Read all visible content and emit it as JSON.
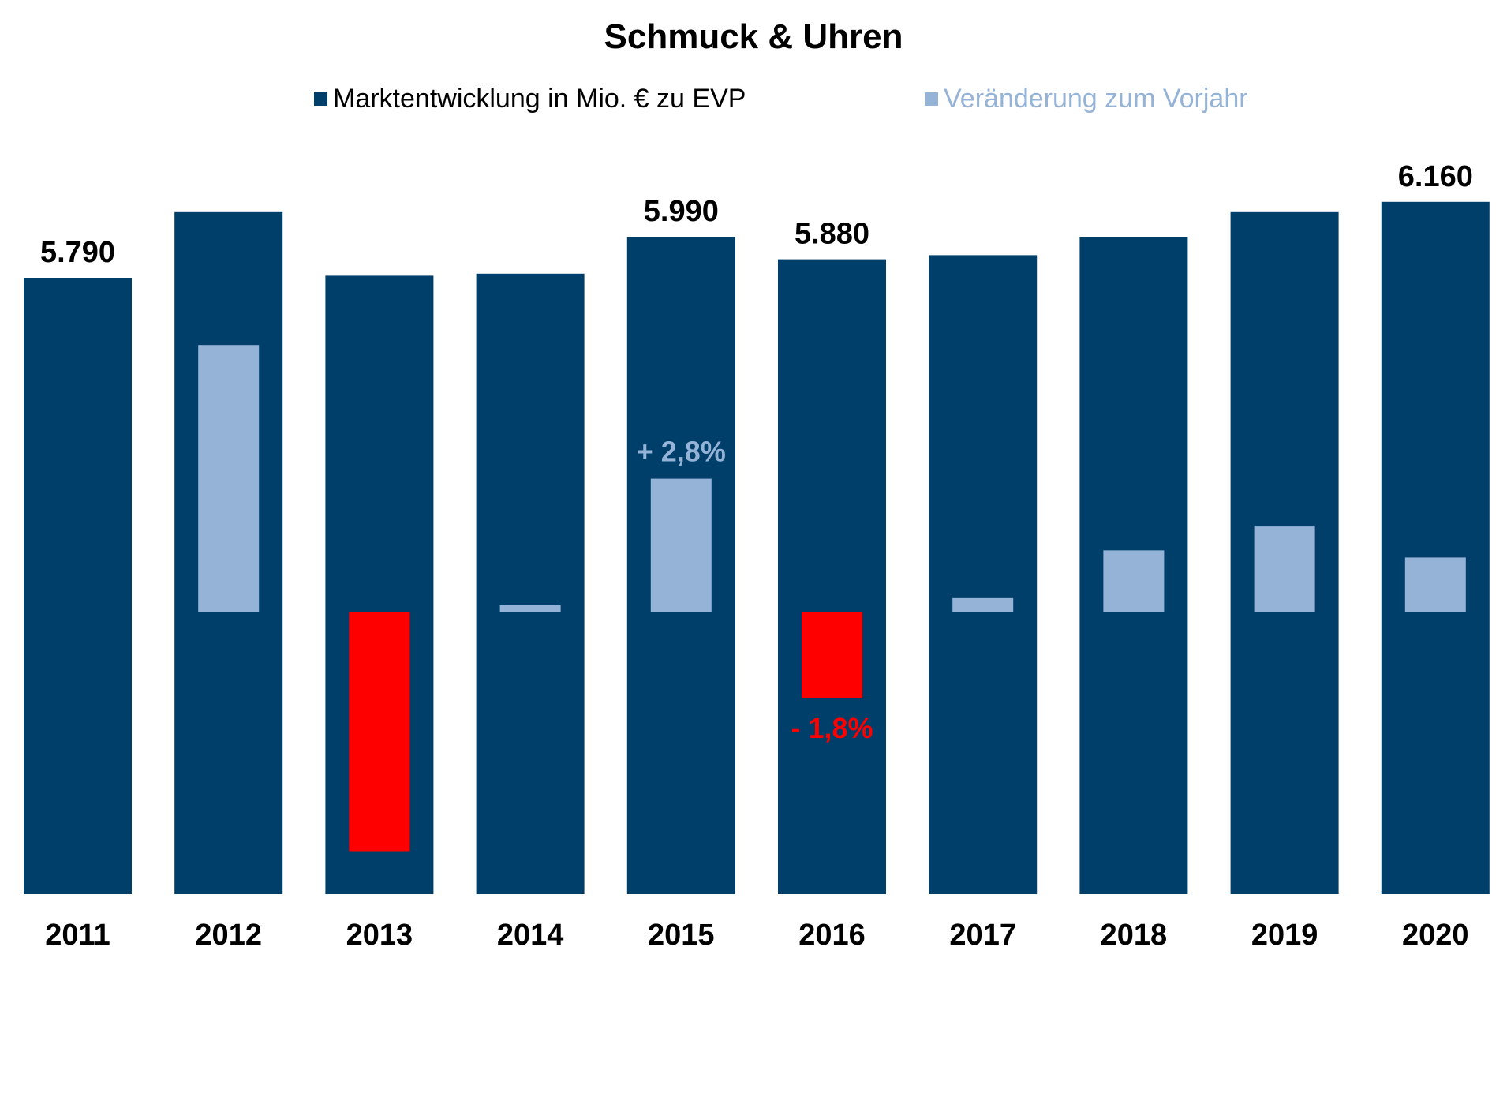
{
  "chart_data": {
    "type": "bar",
    "title": "Schmuck & Uhren",
    "categories": [
      "2011",
      "2012",
      "2013",
      "2014",
      "2015",
      "2016",
      "2017",
      "2018",
      "2019",
      "2020"
    ],
    "series": [
      {
        "name": "Marktentwicklung in Mio. € zu EVP",
        "color": "#003F69",
        "values": [
          5790,
          6110,
          5800,
          5810,
          5990,
          5880,
          5900,
          5990,
          6110,
          6160
        ],
        "value_labels": [
          "5.790",
          "",
          "",
          "",
          "5.990",
          "5.880",
          "",
          "",
          "",
          "6.160"
        ]
      },
      {
        "name": "Veränderung zum Vorjahr",
        "color": "#95B3D7",
        "negative_color": "#FF0000",
        "values": [
          null,
          5.6,
          -5.0,
          0.15,
          2.8,
          -1.8,
          0.3,
          1.3,
          1.8,
          1.15
        ],
        "value_labels": [
          "",
          "",
          "",
          "",
          "+ 2,8%",
          "- 1,8%",
          "",
          "",
          "",
          ""
        ]
      }
    ],
    "legend_position": "top",
    "grid": false
  }
}
